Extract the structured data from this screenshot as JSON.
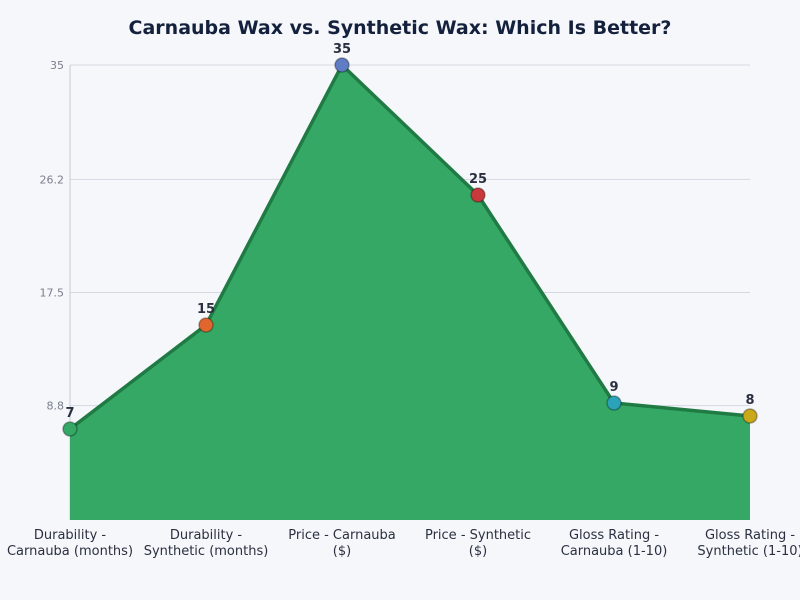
{
  "chart_data": {
    "type": "area",
    "title": "Carnauba Wax vs. Synthetic Wax: Which Is Better?",
    "xlabel": "",
    "ylabel": "",
    "categories": [
      [
        "Durability -",
        "Carnauba (months)"
      ],
      [
        "Durability -",
        "Synthetic (months)"
      ],
      [
        "Price - Carnauba",
        "($)"
      ],
      [
        "Price - Synthetic",
        "($)"
      ],
      [
        "Gloss Rating -",
        "Carnauba (1-10)"
      ],
      [
        "Gloss Rating -",
        "Synthetic (1-10)"
      ]
    ],
    "values": [
      7,
      15,
      35,
      25,
      9,
      8
    ],
    "data_labels": [
      "7",
      "15",
      "35",
      "25",
      "9",
      "8"
    ],
    "ylim": [
      0,
      35
    ],
    "yticks": [
      8.8,
      17.5,
      26.2,
      35
    ],
    "ytick_labels": [
      "8.8",
      "17.5",
      "26.2",
      "35"
    ],
    "grid": true,
    "legend": "none",
    "fill_color": "#35a866",
    "line_color": "#1f7a43",
    "point_colors": [
      "#35a866",
      "#e0662e",
      "#5f7cc4",
      "#c9383a",
      "#2aa3b8",
      "#c9a81a"
    ]
  }
}
